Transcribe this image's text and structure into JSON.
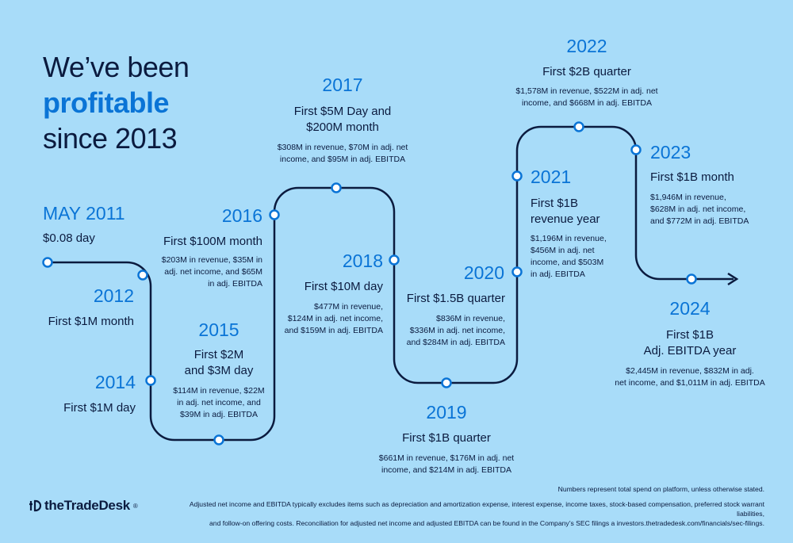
{
  "headline": {
    "line1": "We’ve been",
    "line2": "profitable",
    "line3": "since 2013"
  },
  "milestones": [
    {
      "year": "MAY 2011",
      "title": "$0.08 day",
      "detail": ""
    },
    {
      "year": "2012",
      "title": "First $1M month",
      "detail": ""
    },
    {
      "year": "2014",
      "title": "First $1M day",
      "detail": ""
    },
    {
      "year": "2015",
      "title": "First $2M\nand $3M day",
      "detail": "$114M in revenue, $22M\nin adj. net income, and\n$39M in adj. EBITDA"
    },
    {
      "year": "2016",
      "title": "First $100M month",
      "detail": "$203M in revenue, $35M in\nadj. net income, and $65M\nin adj. EBITDA"
    },
    {
      "year": "2017",
      "title": "First $5M Day and\n$200M month",
      "detail": "$308M in revenue, $70M in adj. net\nincome, and $95M in adj. EBITDA"
    },
    {
      "year": "2018",
      "title": "First $10M day",
      "detail": "$477M in revenue,\n$124M in adj. net income,\nand $159M in adj. EBITDA"
    },
    {
      "year": "2019",
      "title": "First $1B quarter",
      "detail": "$661M in revenue, $176M in adj. net\nincome, and $214M in adj. EBITDA"
    },
    {
      "year": "2020",
      "title": "First $1.5B quarter",
      "detail": "$836M in revenue,\n$336M in adj. net income,\nand $284M in adj. EBITDA"
    },
    {
      "year": "2021",
      "title": "First $1B\nrevenue year",
      "detail": "$1,196M in revenue,\n$456M in adj. net\nincome, and $503M\nin adj. EBITDA"
    },
    {
      "year": "2022",
      "title": "First $2B quarter",
      "detail": "$1,578M in revenue, $522M in adj. net\nincome, and $668M in adj. EBITDA"
    },
    {
      "year": "2023",
      "title": "First $1B month",
      "detail": "$1,946M in revenue,\n$628M in adj. net income,\nand $772M in adj. EBITDA"
    },
    {
      "year": "2024",
      "title": "First $1B\nAdj. EBITDA year",
      "detail": "$2,445M in revenue, $832M in adj.\nnet income, and $1,011M in adj. EBITDA"
    }
  ],
  "logo": {
    "text": "theTradeDesk",
    "mark": "®"
  },
  "footnotes": {
    "note1": "Numbers represent total spend on platform, unless otherwise stated.",
    "note2": "Adjusted net income and EBITDA typically excludes items such as depreciation and amortization expense, interest expense, income taxes, stock-based compensation, preferred stock warrant liabilities,\nand follow-on offering costs. Reconciliation for adjusted net income and adjusted EBITDA can be found in the Company’s SEC filings a investors.thetradedesk.com/financials/sec-filings."
  },
  "colors": {
    "background": "#a8dcf9",
    "accent": "#0a74d6",
    "ink": "#0b1b3f"
  }
}
